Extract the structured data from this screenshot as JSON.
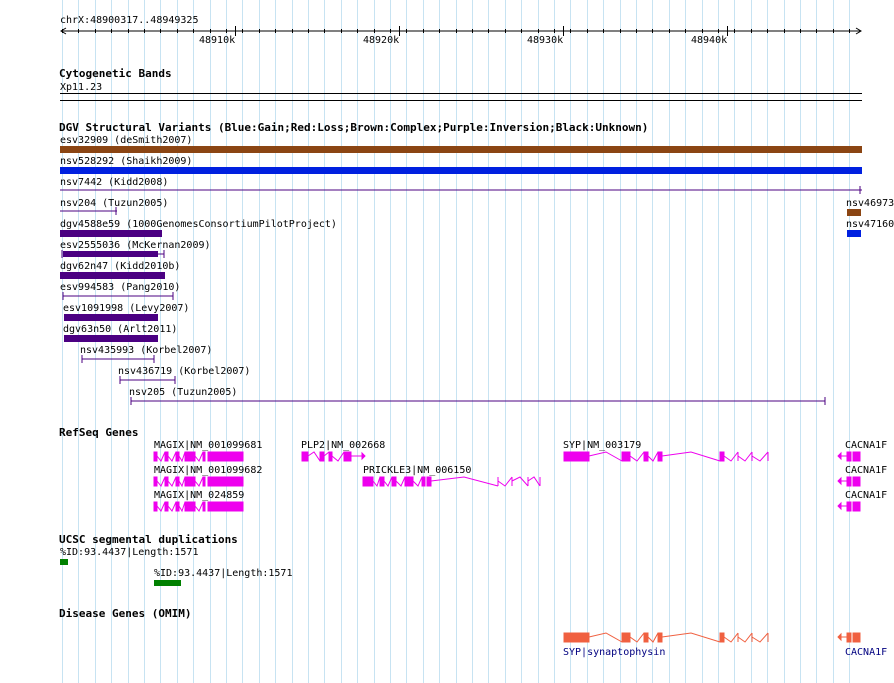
{
  "ruler": {
    "position": "chrX:48900317..48949325",
    "ticks": [
      "48910k",
      "48920k",
      "48930k",
      "48940k"
    ]
  },
  "cytoband": {
    "title": "Cytogenetic Bands",
    "band": "Xp11.23"
  },
  "dgv": {
    "title": "DGV Structural Variants (Blue:Gain;Red:Loss;Brown:Complex;Purple:Inversion;Black:Unknown)",
    "colors": {
      "complex": "#8b4513",
      "gain": "#0020e0",
      "inversion": "#4b0082",
      "unknown": "#000080"
    },
    "labels": [
      "esv32909 (deSmith2007)",
      "nsv528292 (Shaikh2009)",
      "nsv7442 (Kidd2008)",
      "nsv204 (Tuzun2005)",
      "dgv4588e59 (1000GenomesConsortiumPilotProject)",
      "esv2555036 (McKernan2009)",
      "dgv62n47 (Kidd2010b)",
      "esv994583 (Pang2010)",
      "esv1091998 (Levy2007)",
      "dgv63n50 (Arlt2011)",
      "nsv435993 (Korbel2007)",
      "nsv436719 (Korbel2007)",
      "nsv205 (Tuzun2005)"
    ],
    "right_labels": [
      "nsv46973",
      "nsv47160"
    ]
  },
  "refseq": {
    "title": "RefSeq Genes",
    "gene_color": "#ee00ee",
    "labels": [
      "MAGIX|NM_001099681",
      "PLP2|NM_002668",
      "SYP|NM_003179",
      "CACNA1F",
      "MAGIX|NM_001099682",
      "PRICKLE3|NM_006150",
      "CACNA1F",
      "MAGIX|NM_024859",
      "CACNA1F"
    ]
  },
  "segdup": {
    "title": "UCSC segmental duplications",
    "color": "#008000",
    "labels": [
      "%ID:93.4437|Length:1571",
      "%ID:93.4437|Length:1571"
    ]
  },
  "omim": {
    "title": "Disease Genes (OMIM)",
    "color": "#f06040",
    "link_color": "#000080",
    "labels": [
      "SYP|synaptophysin",
      "CACNA1F"
    ]
  }
}
